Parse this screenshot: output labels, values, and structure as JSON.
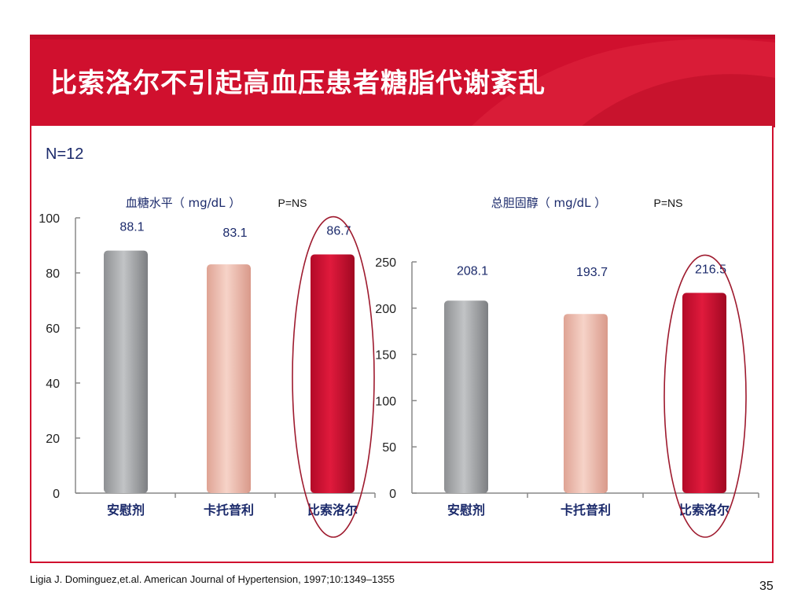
{
  "slide": {
    "title": "比索洛尔不引起高血压患者糖脂代谢紊乱",
    "n_label": "N=12",
    "citation": "Ligia J. Dominguez,et.al. American Journal of Hypertension, 1997;10:1349–1355",
    "page_number": "35",
    "accent_color": "#d0102e"
  },
  "chart_data": [
    {
      "type": "bar",
      "title": "血糖水平（ mg/dL ）",
      "p_value": "P=NS",
      "categories": [
        "安慰剂",
        "卡托普利",
        "比索洛尔"
      ],
      "values": [
        88.1,
        83.1,
        86.7
      ],
      "value_labels": [
        "88.1",
        "83.1",
        "86.7"
      ],
      "ylim": [
        0,
        100
      ],
      "yticks": [
        0,
        20,
        40,
        60,
        80,
        100
      ],
      "grid": false,
      "legend": "none",
      "highlight": "比索洛尔",
      "colors": [
        "#a9abad",
        "#ebb8ab",
        "#cc1133"
      ]
    },
    {
      "type": "bar",
      "title": "总胆固醇（  mg/dL  ）",
      "p_value": "P=NS",
      "categories": [
        "安慰剂",
        "卡托普利",
        "比索洛尔"
      ],
      "values": [
        208.1,
        193.7,
        216.5
      ],
      "value_labels": [
        "208.1",
        "193.7",
        "216.5"
      ],
      "ylim": [
        0,
        250
      ],
      "yticks": [
        0,
        50,
        100,
        150,
        200,
        250
      ],
      "grid": false,
      "legend": "none",
      "highlight": "比索洛尔",
      "colors": [
        "#a9abad",
        "#ebb8ab",
        "#cc1133"
      ]
    }
  ]
}
